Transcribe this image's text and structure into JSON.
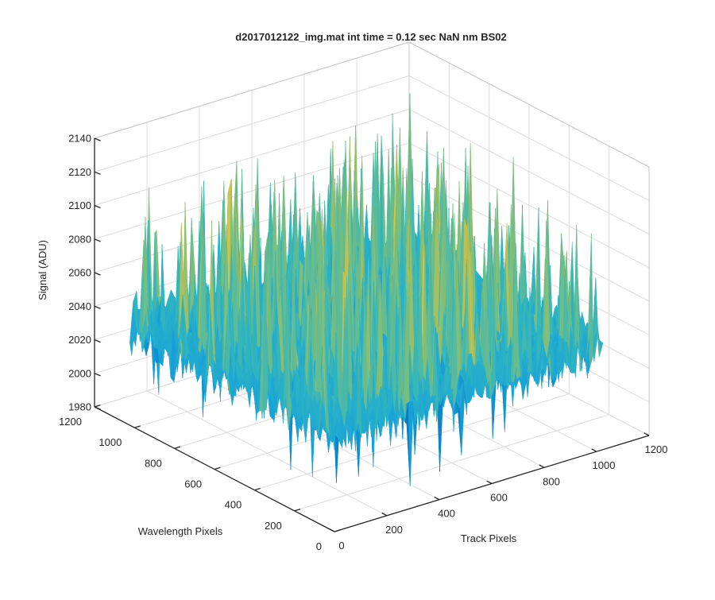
{
  "chart_data": {
    "type": "surface",
    "title": "d2017012122_img.mat int time = 0.12 sec  NaN nm BS02",
    "xlabel": "Track Pixels",
    "ylabel": "Wavelength Pixels",
    "zlabel": "Signal (ADU)",
    "xlim": [
      0,
      1200
    ],
    "ylim": [
      0,
      1200
    ],
    "zlim": [
      1980,
      2140
    ],
    "x_ticks": [
      0,
      200,
      400,
      600,
      800,
      1000,
      1200
    ],
    "y_ticks": [
      0,
      200,
      400,
      600,
      800,
      1000,
      1200
    ],
    "z_ticks": [
      1980,
      2000,
      2020,
      2040,
      2060,
      2080,
      2100,
      2120,
      2140
    ],
    "data_extent": {
      "x": [
        0,
        1024
      ],
      "y": [
        0,
        1024
      ]
    },
    "surface_stats": {
      "baseline_signal": 2040,
      "noise_amplitude": 15,
      "max_signal": 2136,
      "min_signal": 1990
    },
    "colormap": [
      "#0072bd",
      "#1aa3d9",
      "#2fb5c0",
      "#7fbf7b",
      "#c9c04a",
      "#eccd3a"
    ],
    "grid": true
  }
}
